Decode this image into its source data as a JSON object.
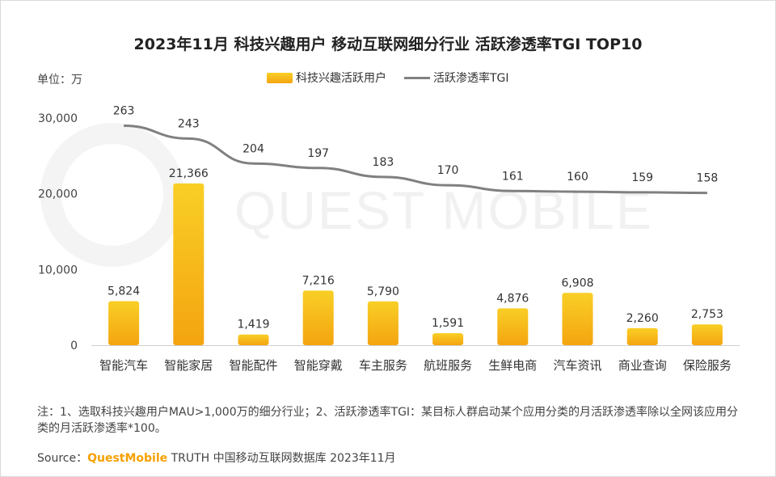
{
  "title": "2023年11月 科技兴趣用户 移动互联网细分行业 活跃渗透率TGI TOP10",
  "unit_label": "单位：万",
  "watermark": "QUEST MOBILE",
  "note": "注：1、选取科技兴趣用户MAU>1,000万的细分行业；2、活跃渗透率TGI：某目标人群启动某个应用分类的月活跃渗透率除以全网该应用分类的月活跃渗透率*100。",
  "source": {
    "prefix": "Source：",
    "brand": "QuestMobile",
    "rest": " TRUTH 中国移动互联网数据库 2023年11月"
  },
  "colors": {
    "bar_top": "#f9cf26",
    "bar_bottom": "#f4a410",
    "line": "#808080"
  },
  "chart_data": {
    "type": "bar",
    "categories": [
      "智能汽车",
      "智能家居",
      "智能配件",
      "智能穿戴",
      "车主服务",
      "航班服务",
      "生鲜电商",
      "汽车资讯",
      "商业查询",
      "保险服务"
    ],
    "series": [
      {
        "name": "科技兴趣活跃用户",
        "type": "bar",
        "values": [
          5824,
          21366,
          1419,
          7216,
          5790,
          1591,
          4876,
          6908,
          2260,
          2753
        ],
        "labels": [
          "5,824",
          "21,366",
          "1,419",
          "7,216",
          "5,790",
          "1,591",
          "4,876",
          "6,908",
          "2,260",
          "2,753"
        ]
      },
      {
        "name": "活跃渗透率TGI",
        "type": "line",
        "values": [
          263,
          243,
          204,
          197,
          183,
          170,
          161,
          160,
          159,
          158
        ],
        "labels": [
          "263",
          "243",
          "204",
          "197",
          "183",
          "170",
          "161",
          "160",
          "159",
          "158"
        ]
      }
    ],
    "y_ticks": [
      "0",
      "10,000",
      "20,000",
      "30,000"
    ],
    "ylim": [
      0,
      30000
    ],
    "legend_position": "top",
    "grid": false
  }
}
